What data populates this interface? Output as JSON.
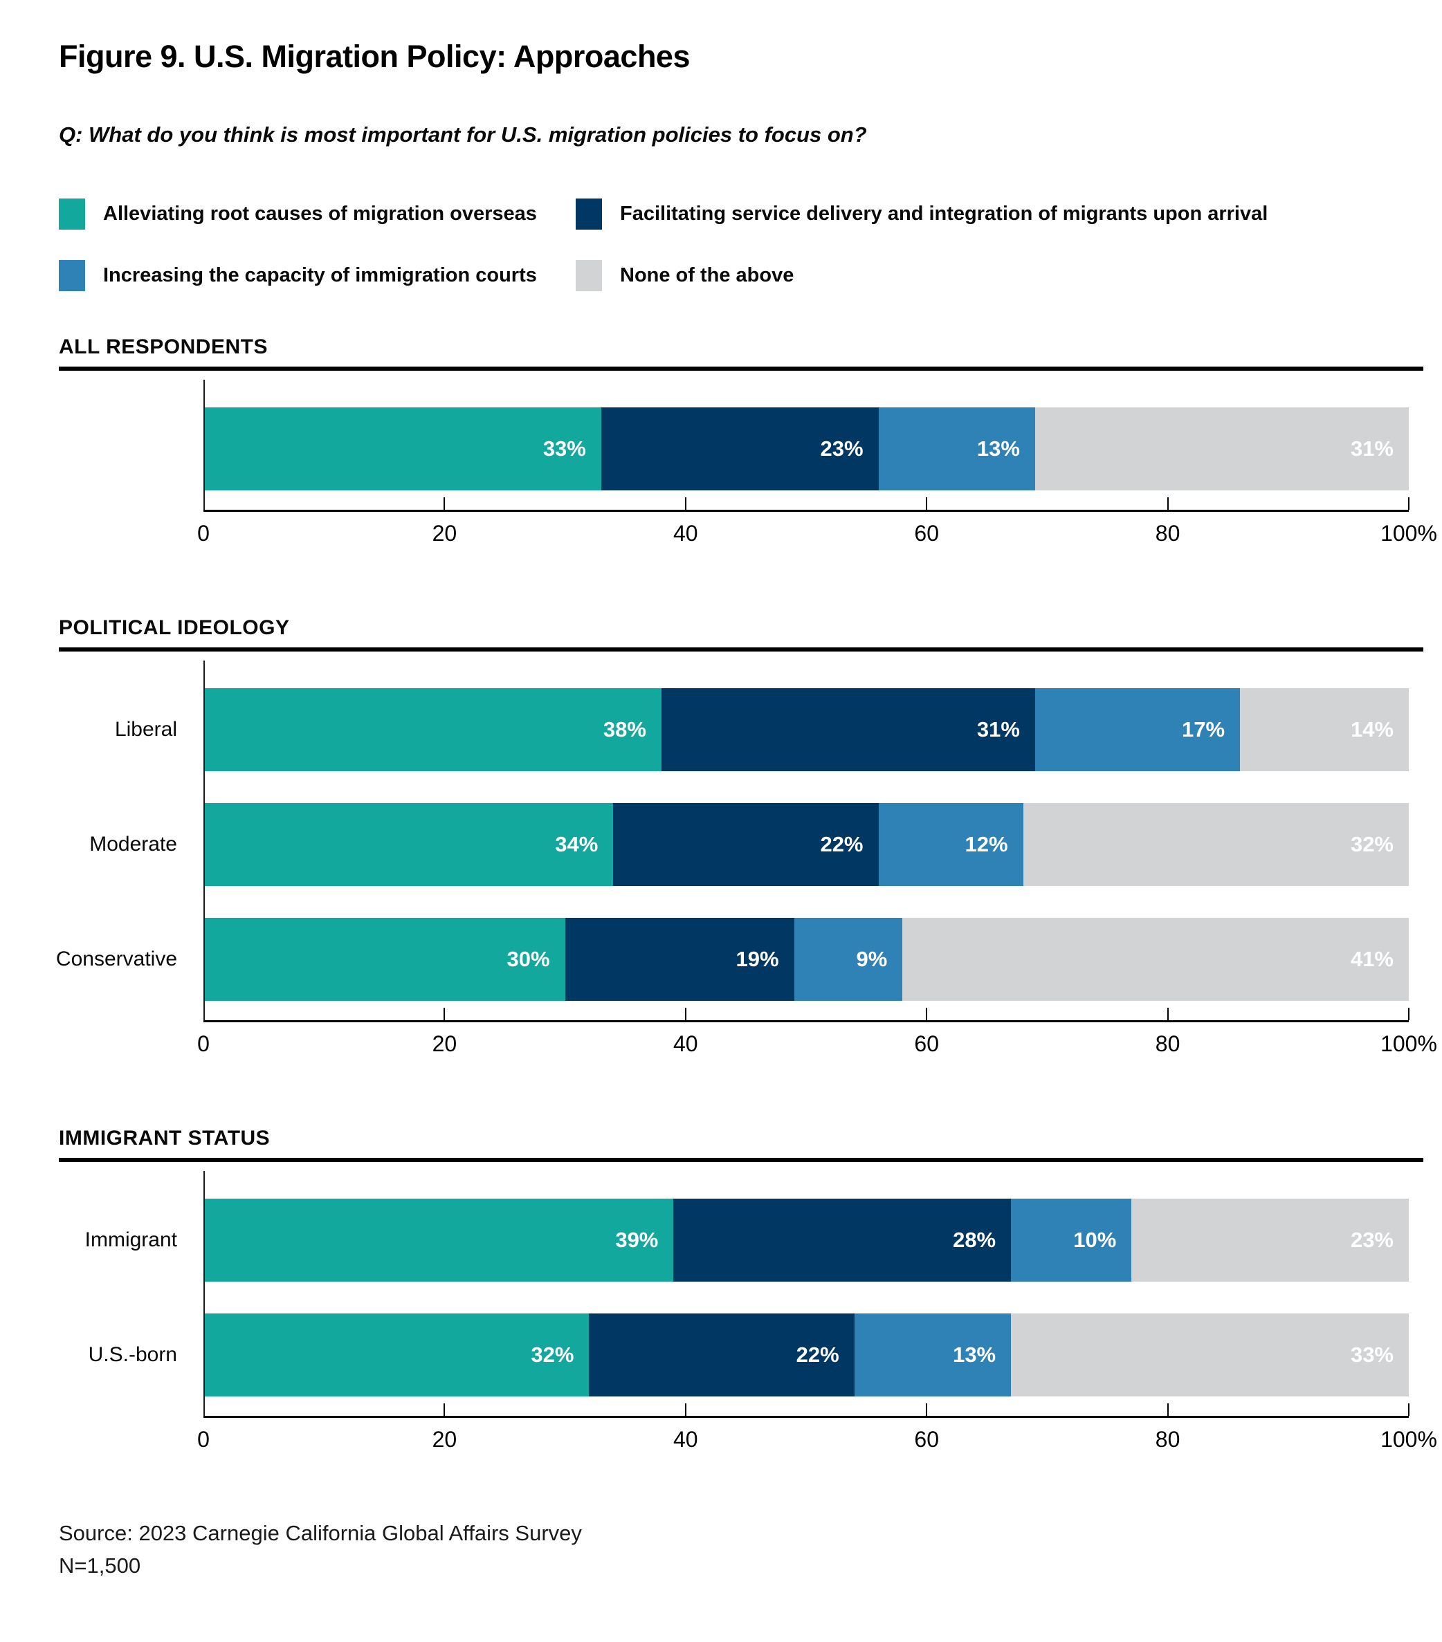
{
  "title": "Figure 9. U.S. Migration Policy: Approaches",
  "question": "Q: What do you think is most important for U.S. migration policies to focus on?",
  "legend": [
    {
      "label": "Alleviating root causes of migration overseas",
      "color": "#13A89E"
    },
    {
      "label": "Facilitating service delivery and integration of migrants upon arrival",
      "color": "#003863"
    },
    {
      "label": "Increasing the capacity of immigration courts",
      "color": "#2F82B5"
    },
    {
      "label": "None of the above",
      "color": "#D1D3D4"
    }
  ],
  "colors": {
    "teal": "#13A89E",
    "navy": "#003863",
    "blue": "#2F82B5",
    "gray": "#D1D3D4",
    "bar_label_text": "#ffffff"
  },
  "source_line1": "Source: 2023 Carnegie California Global Affairs Survey",
  "source_line2": "N=1,500",
  "chart_data": [
    {
      "type": "bar",
      "stacked": true,
      "orientation": "horizontal",
      "section": "ALL RESPONDENTS",
      "categories": [
        ""
      ],
      "series": [
        {
          "name": "Alleviating root causes of migration overseas",
          "color": "#13A89E",
          "values": [
            33
          ]
        },
        {
          "name": "Facilitating service delivery and integration of migrants upon arrival",
          "color": "#003863",
          "values": [
            23
          ]
        },
        {
          "name": "Increasing the capacity of immigration courts",
          "color": "#2F82B5",
          "values": [
            13
          ]
        },
        {
          "name": "None of the above",
          "color": "#D1D3D4",
          "values": [
            31
          ]
        }
      ],
      "value_suffix": "%",
      "xlim": [
        0,
        100
      ],
      "ticks": [
        {
          "value": 0,
          "label": "0"
        },
        {
          "value": 20,
          "label": "20"
        },
        {
          "value": 40,
          "label": "40"
        },
        {
          "value": 60,
          "label": "60"
        },
        {
          "value": 80,
          "label": "80"
        },
        {
          "value": 100,
          "label": "100%"
        }
      ]
    },
    {
      "type": "bar",
      "stacked": true,
      "orientation": "horizontal",
      "section": "POLITICAL IDEOLOGY",
      "categories": [
        "Liberal",
        "Moderate",
        "Conservative"
      ],
      "series": [
        {
          "name": "Alleviating root causes of migration overseas",
          "color": "#13A89E",
          "values": [
            38,
            34,
            30
          ]
        },
        {
          "name": "Facilitating service delivery and integration of migrants upon arrival",
          "color": "#003863",
          "values": [
            31,
            22,
            19
          ]
        },
        {
          "name": "Increasing the capacity of immigration courts",
          "color": "#2F82B5",
          "values": [
            17,
            12,
            9
          ]
        },
        {
          "name": "None of the above",
          "color": "#D1D3D4",
          "values": [
            14,
            32,
            41
          ]
        }
      ],
      "value_suffix": "%",
      "xlim": [
        0,
        100
      ],
      "ticks": [
        {
          "value": 0,
          "label": "0"
        },
        {
          "value": 20,
          "label": "20"
        },
        {
          "value": 40,
          "label": "40"
        },
        {
          "value": 60,
          "label": "60"
        },
        {
          "value": 80,
          "label": "80"
        },
        {
          "value": 100,
          "label": "100%"
        }
      ]
    },
    {
      "type": "bar",
      "stacked": true,
      "orientation": "horizontal",
      "section": "IMMIGRANT STATUS",
      "categories": [
        "Immigrant",
        "U.S.-born"
      ],
      "series": [
        {
          "name": "Alleviating root causes of migration overseas",
          "color": "#13A89E",
          "values": [
            39,
            32
          ]
        },
        {
          "name": "Facilitating service delivery and integration of migrants upon arrival",
          "color": "#003863",
          "values": [
            28,
            22
          ]
        },
        {
          "name": "Increasing the capacity of immigration courts",
          "color": "#2F82B5",
          "values": [
            10,
            13
          ]
        },
        {
          "name": "None of the above",
          "color": "#D1D3D4",
          "values": [
            23,
            33
          ]
        }
      ],
      "value_suffix": "%",
      "xlim": [
        0,
        100
      ],
      "ticks": [
        {
          "value": 0,
          "label": "0"
        },
        {
          "value": 20,
          "label": "20"
        },
        {
          "value": 40,
          "label": "40"
        },
        {
          "value": 60,
          "label": "60"
        },
        {
          "value": 80,
          "label": "80"
        },
        {
          "value": 100,
          "label": "100%"
        }
      ]
    }
  ]
}
